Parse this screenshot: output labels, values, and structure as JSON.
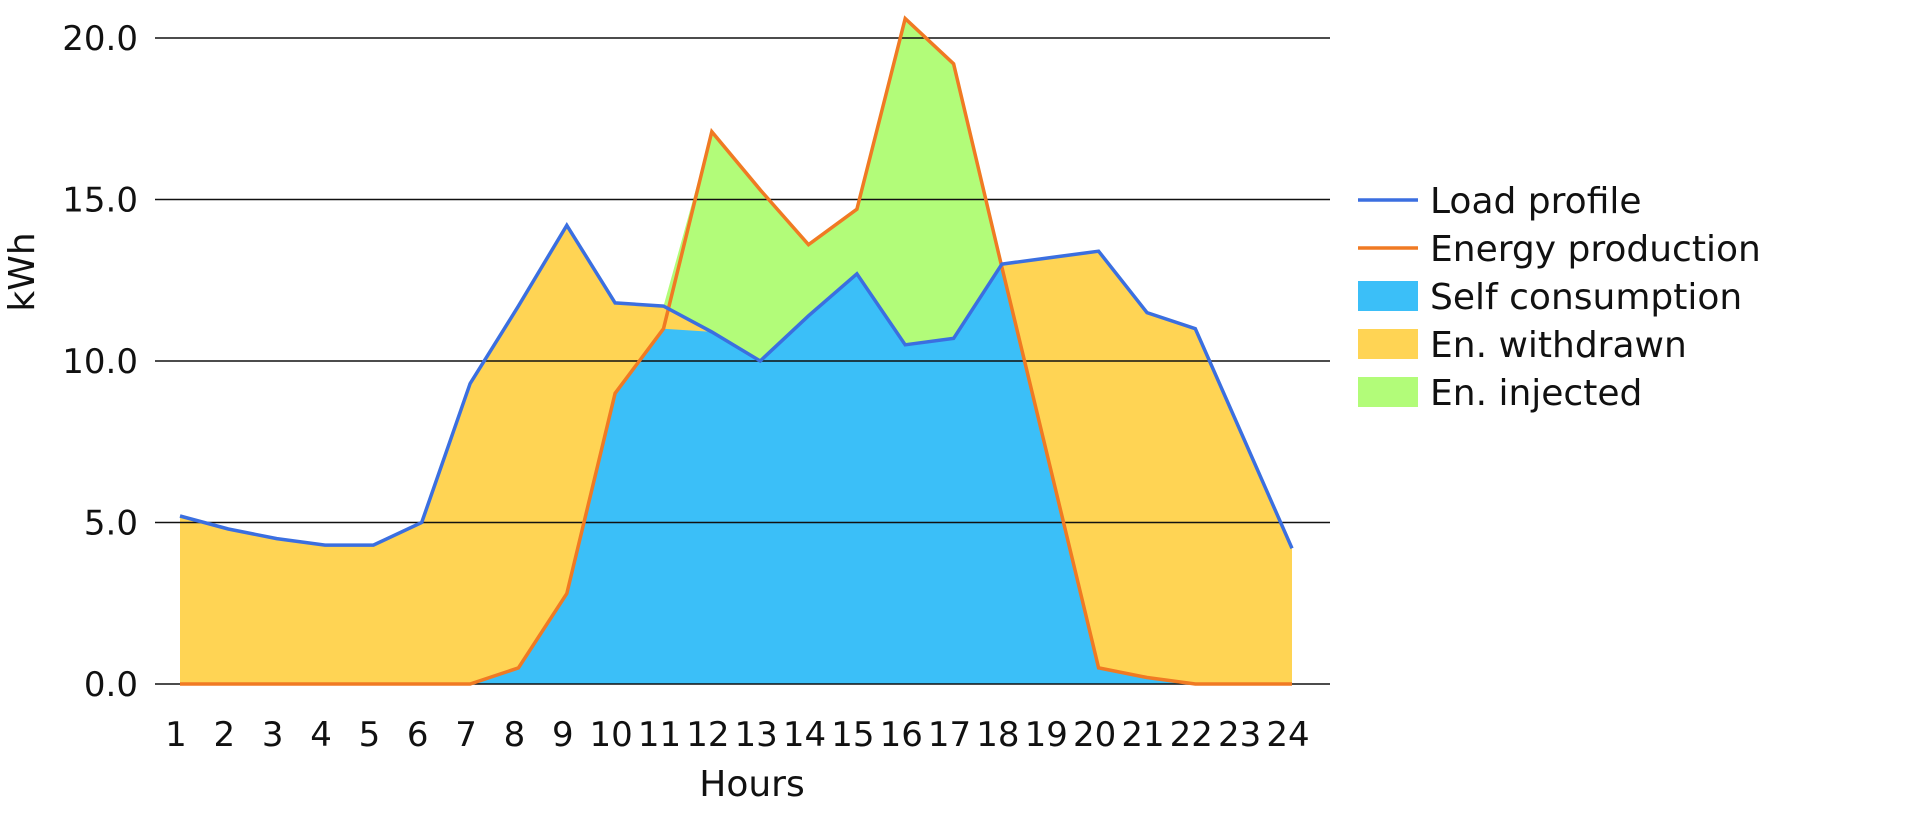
{
  "chart_data": {
    "type": "area",
    "title": "",
    "xlabel": "Hours",
    "ylabel": "kWh",
    "categories": [
      "1",
      "2",
      "3",
      "4",
      "5",
      "6",
      "7",
      "8",
      "9",
      "10",
      "11",
      "12",
      "13",
      "14",
      "15",
      "16",
      "17",
      "18",
      "19",
      "20",
      "21",
      "22",
      "23",
      "24"
    ],
    "ylim": [
      0,
      20.0
    ],
    "yticks": [
      "0.0",
      "5.0",
      "10.0",
      "15.0",
      "20.0"
    ],
    "grid": true,
    "legend_position": "right",
    "series": [
      {
        "name": "Load profile",
        "kind": "line",
        "color": "#3b6fe0",
        "values": [
          5.2,
          4.8,
          4.5,
          4.3,
          4.3,
          5.0,
          9.3,
          11.7,
          14.2,
          11.8,
          11.7,
          10.9,
          10.0,
          11.4,
          12.7,
          10.5,
          10.7,
          13.0,
          13.2,
          13.4,
          11.5,
          11.0,
          7.6,
          4.2
        ]
      },
      {
        "name": "Energy production",
        "kind": "line",
        "color": "#f07a23",
        "values": [
          0.0,
          0.0,
          0.0,
          0.0,
          0.0,
          0.0,
          0.0,
          0.5,
          2.8,
          9.0,
          11.0,
          17.1,
          15.3,
          13.6,
          14.7,
          20.6,
          19.2,
          12.9,
          6.7,
          0.5,
          0.2,
          0.0,
          0.0,
          0.0
        ]
      },
      {
        "name": "Self consumption",
        "kind": "area",
        "color": "#3bbff8"
      },
      {
        "name": "En. withdrawn",
        "kind": "area",
        "color": "#ffd454"
      },
      {
        "name": "En. injected",
        "kind": "area",
        "color": "#b2fc79"
      }
    ]
  }
}
